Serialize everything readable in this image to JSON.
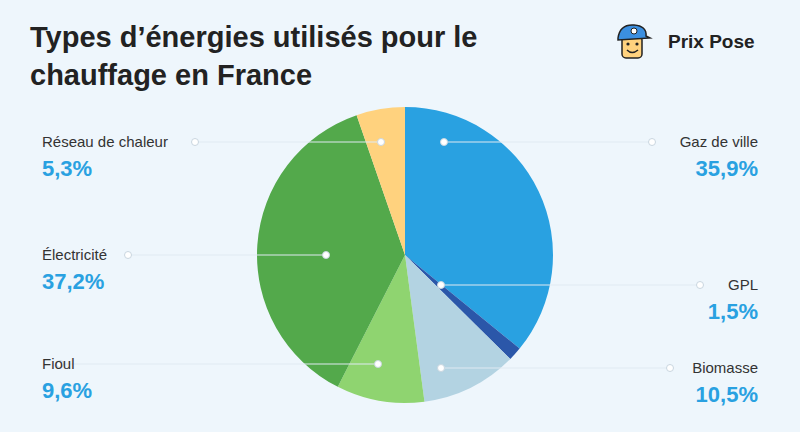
{
  "chart_data": {
    "type": "pie",
    "title": "Types d’énergies utilisés pour le chauffage en France",
    "brand": "Prix Pose",
    "categories": [
      "Gaz de ville",
      "GPL",
      "Biomasse",
      "Fioul",
      "Électricité",
      "Réseau de chaleur"
    ],
    "values": [
      35.9,
      1.5,
      10.5,
      9.6,
      37.2,
      5.3
    ],
    "value_labels": [
      "35,9%",
      "1,5%",
      "10,5%",
      "9,6%",
      "37,2%",
      "5,3%"
    ],
    "colors": [
      "#29a1e1",
      "#2b57a9",
      "#b3d3e2",
      "#8fd470",
      "#53a94b",
      "#ffd27e"
    ],
    "data_labels": true
  }
}
